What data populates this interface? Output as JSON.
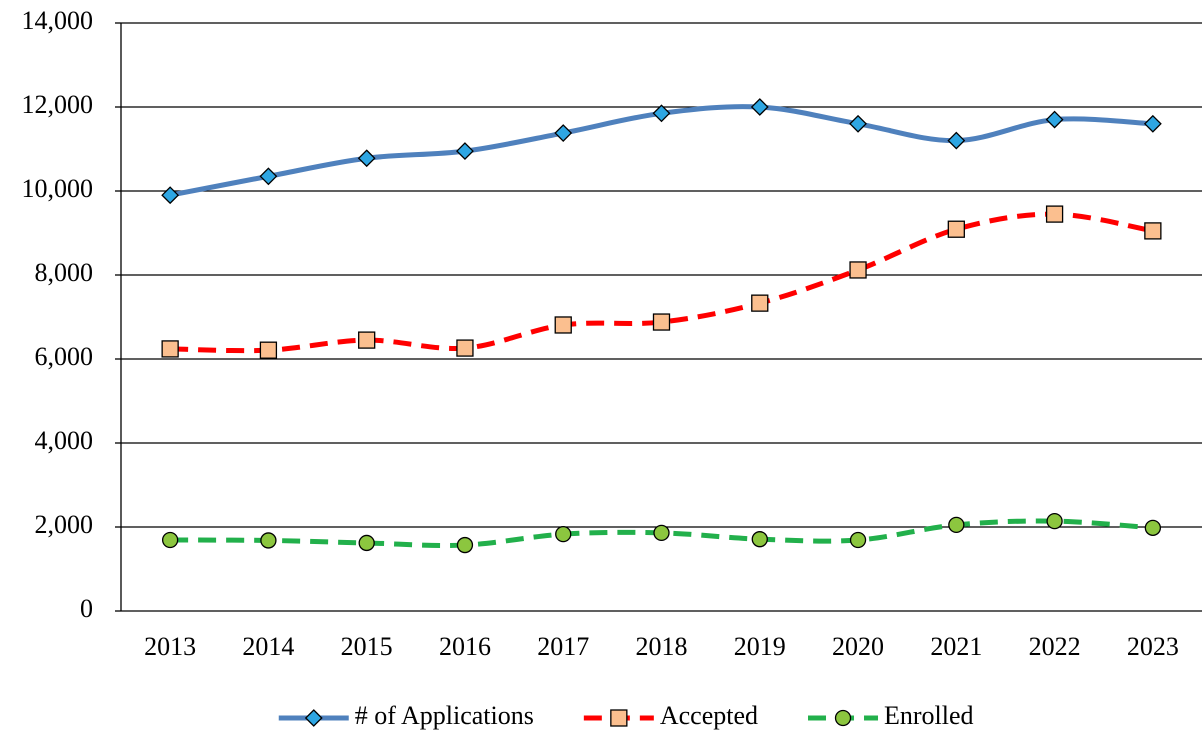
{
  "chart_data": {
    "type": "line",
    "categories": [
      "2013",
      "2014",
      "2015",
      "2016",
      "2017",
      "2018",
      "2019",
      "2020",
      "2021",
      "2022",
      "2023"
    ],
    "series": [
      {
        "name": "# of Applications",
        "color": "#4f81bd",
        "marker": "diamond",
        "marker_color": "#2ea6e3",
        "dash": "solid",
        "smooth": true,
        "values": [
          9900,
          10350,
          10780,
          10950,
          11380,
          11850,
          12000,
          11600,
          11200,
          11700,
          11600
        ]
      },
      {
        "name": "Accepted",
        "color": "#ff0000",
        "marker": "square",
        "marker_color": "#fbbf8f",
        "dash": "dashed",
        "smooth": true,
        "values": [
          6240,
          6210,
          6450,
          6260,
          6810,
          6880,
          7330,
          8120,
          9090,
          9450,
          9050
        ]
      },
      {
        "name": "Enrolled",
        "color": "#22b04b",
        "marker": "circle",
        "marker_color": "#8cc63f",
        "dash": "dashed",
        "smooth": true,
        "values": [
          1690,
          1680,
          1620,
          1570,
          1830,
          1860,
          1710,
          1690,
          2050,
          2140,
          1980
        ]
      }
    ],
    "ylim": [
      0,
      14000
    ],
    "yticks": [
      0,
      {
        "value": 2000,
        "label": "2,000"
      },
      {
        "value": 4000,
        "label": "4,000"
      },
      {
        "value": 6000,
        "label": "6,000"
      },
      {
        "value": 8000,
        "label": "8,000"
      },
      {
        "value": 10000,
        "label": "10,000"
      },
      {
        "value": 12000,
        "label": "12,000"
      },
      {
        "value": 14000,
        "label": "14,000"
      }
    ],
    "grid": true,
    "legend": "bottom"
  }
}
